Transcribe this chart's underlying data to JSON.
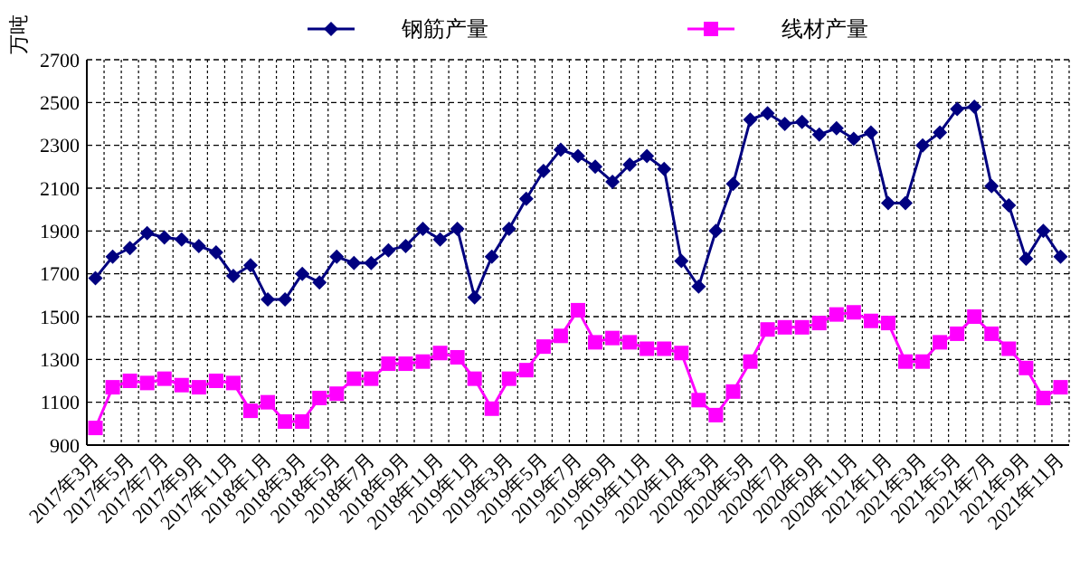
{
  "chart_data": {
    "type": "line",
    "ylabel": "万吨",
    "ylim": [
      900,
      2700
    ],
    "yticks": [
      900,
      1100,
      1300,
      1500,
      1700,
      1900,
      2100,
      2300,
      2500,
      2700
    ],
    "grid": true,
    "legend": "top",
    "line_style": "solid",
    "categories": [
      "2017年3月",
      null,
      "2017年5月",
      null,
      "2017年7月",
      null,
      "2017年9月",
      null,
      "2017年11月",
      null,
      "2018年1月",
      null,
      "2018年3月",
      null,
      "2018年5月",
      null,
      "2018年7月",
      null,
      "2018年9月",
      null,
      "2018年11月",
      null,
      "2019年1月",
      null,
      "2019年3月",
      null,
      "2019年5月",
      null,
      "2019年7月",
      null,
      "2019年9月",
      null,
      "2019年11月",
      null,
      "2020年1月",
      null,
      "2020年3月",
      null,
      "2020年5月",
      null,
      "2020年7月",
      null,
      "2020年9月",
      null,
      "2020年11月",
      null,
      "2021年1月",
      null,
      "2021年3月",
      null,
      "2021年5月",
      null,
      "2021年7月",
      null,
      "2021年9月",
      null,
      "2021年11月"
    ],
    "series": [
      {
        "name": "钢筋产量",
        "color": "#000080",
        "marker": "diamond",
        "values": [
          1680,
          1780,
          1820,
          1890,
          1870,
          1860,
          1830,
          1800,
          1690,
          1740,
          1580,
          1580,
          1700,
          1660,
          1780,
          1750,
          1750,
          1810,
          1830,
          1910,
          1860,
          1910,
          1590,
          1780,
          1910,
          2050,
          2180,
          2280,
          2250,
          2200,
          2130,
          2210,
          2250,
          2190,
          1760,
          1640,
          1900,
          2120,
          2420,
          2450,
          2400,
          2410,
          2350,
          2380,
          2330,
          2360,
          2030,
          2030,
          2300,
          2360,
          2470,
          2480,
          2110,
          2020,
          1770,
          1900,
          1780
        ]
      },
      {
        "name": "线材产量",
        "color": "#ff00ff",
        "marker": "square",
        "values": [
          980,
          1170,
          1200,
          1190,
          1210,
          1180,
          1170,
          1200,
          1190,
          1060,
          1100,
          1010,
          1010,
          1120,
          1140,
          1210,
          1210,
          1280,
          1280,
          1290,
          1330,
          1310,
          1210,
          1070,
          1210,
          1250,
          1360,
          1410,
          1530,
          1380,
          1400,
          1380,
          1350,
          1350,
          1330,
          1110,
          1040,
          1150,
          1290,
          1440,
          1450,
          1450,
          1470,
          1510,
          1520,
          1480,
          1470,
          1290,
          1290,
          1380,
          1420,
          1500,
          1420,
          1350,
          1260,
          1120,
          1170
        ]
      }
    ]
  }
}
